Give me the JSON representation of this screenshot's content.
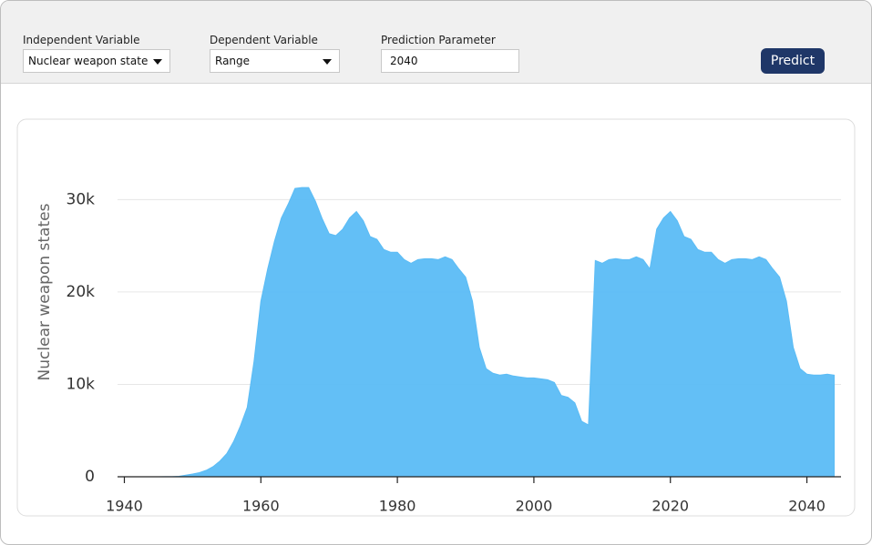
{
  "controls": {
    "independent": {
      "label": "Independent Variable",
      "value": "Nuclear weapon state"
    },
    "dependent": {
      "label": "Dependent Variable",
      "value": "Range"
    },
    "parameter": {
      "label": "Prediction Parameter",
      "value": "2040"
    },
    "button": "Predict"
  },
  "chart_data": {
    "type": "area",
    "ylabel": "Nuclear weapon states",
    "color": "#5bbcf5",
    "grid": true,
    "x": [
      1945,
      1946,
      1947,
      1948,
      1949,
      1950,
      1951,
      1952,
      1953,
      1954,
      1955,
      1956,
      1957,
      1958,
      1959,
      1960,
      1961,
      1962,
      1963,
      1964,
      1965,
      1966,
      1967,
      1968,
      1969,
      1970,
      1971,
      1972,
      1973,
      1974,
      1975,
      1976,
      1977,
      1978,
      1979,
      1980,
      1981,
      1982,
      1983,
      1984,
      1985,
      1986,
      1987,
      1988,
      1989,
      1990,
      1991,
      1992,
      1993,
      1994,
      1995,
      1996,
      1997,
      1998,
      1999,
      2000,
      2001,
      2002,
      2003,
      2004,
      2005,
      2006,
      2007,
      2008,
      2009,
      2010,
      2011,
      2012,
      2013,
      2014,
      2015,
      2016,
      2017,
      2018,
      2019,
      2020,
      2021,
      2022,
      2023,
      2024,
      2025,
      2026,
      2027,
      2028,
      2029,
      2030,
      2031,
      2032,
      2033,
      2034,
      2035,
      2036,
      2037,
      2038,
      2039,
      2040,
      2041,
      2042,
      2043,
      2044
    ],
    "values": [
      2,
      9,
      13,
      50,
      170,
      300,
      450,
      700,
      1100,
      1700,
      2500,
      3800,
      5500,
      7500,
      12500,
      19000,
      22500,
      25500,
      28000,
      29500,
      31200,
      31300,
      31300,
      29800,
      27900,
      26300,
      26100,
      26800,
      28000,
      28700,
      27700,
      26000,
      25700,
      24600,
      24300,
      24300,
      23500,
      23100,
      23500,
      23600,
      23600,
      23500,
      23800,
      23500,
      22500,
      21600,
      19000,
      14000,
      11700,
      11200,
      11000,
      11100,
      10900,
      10800,
      10700,
      10700,
      10600,
      10500,
      10200,
      8800,
      8600,
      8000,
      6000,
      5600,
      23400,
      23100,
      23500,
      23600,
      23500,
      23500,
      23800,
      23500,
      22500,
      26800,
      28000,
      28700,
      27700,
      26000,
      25700,
      24600,
      24300,
      24300,
      23500,
      23100,
      23500,
      23600,
      23600,
      23500,
      23800,
      23500,
      22500,
      21600,
      19000,
      14000,
      11700,
      11100,
      11000,
      11000,
      11100,
      11000
    ],
    "xlim": [
      1939,
      2045
    ],
    "xticks": [
      1940,
      1960,
      1980,
      2000,
      2020,
      2040
    ],
    "ylim": [
      0,
      32000
    ],
    "yticks": [
      0,
      {
        "value": 10000,
        "label": "10k"
      },
      {
        "value": 20000,
        "label": "20k"
      },
      {
        "value": 30000,
        "label": "30k"
      }
    ]
  }
}
